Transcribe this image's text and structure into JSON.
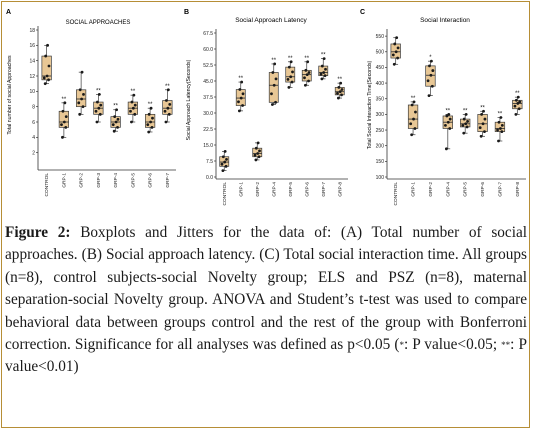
{
  "chart_data": [
    {
      "type": "boxplot",
      "panel_letter": "A",
      "title": "SOCIAL APPROACHES",
      "ylabel": "Total number of social Approaches",
      "ylim": [
        0,
        18
      ],
      "yticks": [
        2,
        4,
        6,
        8,
        10,
        12,
        14,
        16,
        18
      ],
      "categories": [
        "CONTROL",
        "GRP-1",
        "GRP-2",
        "GRP-3",
        "GRP-4",
        "GRP-5",
        "GRP-6",
        "GRP-7"
      ],
      "boxes": [
        {
          "min": 11,
          "q1": 11.5,
          "median": 12,
          "q3": 14.6,
          "max": 16,
          "sig": ""
        },
        {
          "min": 4,
          "q1": 5.3,
          "median": 6,
          "q3": 7.4,
          "max": 8.5,
          "sig": "**"
        },
        {
          "min": 7,
          "q1": 8,
          "median": 9,
          "q3": 10.2,
          "max": 12.5,
          "sig": ""
        },
        {
          "min": 6,
          "q1": 7,
          "median": 7.8,
          "q3": 8.6,
          "max": 9.6,
          "sig": "**"
        },
        {
          "min": 4.8,
          "q1": 5.3,
          "median": 6,
          "q3": 6.7,
          "max": 7.6,
          "sig": "**"
        },
        {
          "min": 6,
          "q1": 7,
          "median": 7.8,
          "q3": 8.6,
          "max": 9.5,
          "sig": "**"
        },
        {
          "min": 4.7,
          "q1": 5.3,
          "median": 6,
          "q3": 7,
          "max": 7.8,
          "sig": "**"
        },
        {
          "min": 6,
          "q1": 7,
          "median": 7.8,
          "q3": 8.8,
          "max": 10.2,
          "sig": "**"
        }
      ]
    },
    {
      "type": "boxplot",
      "panel_letter": "B",
      "title": "Social Approach Latency",
      "ylabel": "Social Approach Latency(Seconds)",
      "ylim": [
        0,
        67.5
      ],
      "yticks": [
        "0.0",
        "7.5",
        "15.0",
        "22.5",
        "30.0",
        "37.5",
        "45.0",
        "52.5",
        "60.0",
        "67.5"
      ],
      "categories": [
        "CONTROL",
        "GRP-1",
        "GRP-2",
        "GRP-4",
        "GRP-5",
        "GRP-6",
        "GRP-7",
        "GRP-8"
      ],
      "boxes": [
        {
          "min": 3,
          "q1": 5,
          "median": 7,
          "q3": 9.5,
          "max": 12,
          "sig": ""
        },
        {
          "min": 31,
          "q1": 33.5,
          "median": 37,
          "q3": 41,
          "max": 44.5,
          "sig": "**"
        },
        {
          "min": 8,
          "q1": 9.5,
          "median": 11,
          "q3": 13.5,
          "max": 16,
          "sig": ""
        },
        {
          "min": 34,
          "q1": 35,
          "median": 43,
          "q3": 49,
          "max": 53,
          "sig": "**"
        },
        {
          "min": 42,
          "q1": 44.5,
          "median": 47,
          "q3": 51.5,
          "max": 54,
          "sig": "**"
        },
        {
          "min": 43,
          "q1": 45,
          "median": 48,
          "q3": 50,
          "max": 54,
          "sig": "**"
        },
        {
          "min": 46,
          "q1": 47.5,
          "median": 49,
          "q3": 52,
          "max": 55.5,
          "sig": "**"
        },
        {
          "min": 37,
          "q1": 38.5,
          "median": 40,
          "q3": 42,
          "max": 44,
          "sig": "**"
        }
      ]
    },
    {
      "type": "boxplot",
      "panel_letter": "C",
      "title": "Social Interaction",
      "ylabel": "Total Social Interaction Time(Seconds)",
      "ylim": [
        100,
        560
      ],
      "yticks": [
        100,
        150,
        200,
        250,
        300,
        350,
        400,
        450,
        500,
        550
      ],
      "categories": [
        "CONTROL",
        "GRP-1",
        "GRP-2",
        "GRP-4",
        "GRP-5",
        "GRP-6",
        "GRP-7",
        "GRP-8"
      ],
      "boxes": [
        {
          "min": 460,
          "q1": 480,
          "median": 500,
          "q3": 525,
          "max": 545,
          "sig": ""
        },
        {
          "min": 235,
          "q1": 255,
          "median": 285,
          "q3": 330,
          "max": 340,
          "sig": "**"
        },
        {
          "min": 360,
          "q1": 390,
          "median": 425,
          "q3": 455,
          "max": 470,
          "sig": "*"
        },
        {
          "min": 190,
          "q1": 255,
          "median": 275,
          "q3": 295,
          "max": 300,
          "sig": "**"
        },
        {
          "min": 240,
          "q1": 260,
          "median": 270,
          "q3": 285,
          "max": 300,
          "sig": "**"
        },
        {
          "min": 230,
          "q1": 245,
          "median": 270,
          "q3": 300,
          "max": 310,
          "sig": "**"
        },
        {
          "min": 215,
          "q1": 245,
          "median": 255,
          "q3": 275,
          "max": 290,
          "sig": "**"
        },
        {
          "min": 300,
          "q1": 318,
          "median": 335,
          "q3": 345,
          "max": 355,
          "sig": "**"
        }
      ]
    }
  ],
  "caption": {
    "label": "Figure 2:",
    "text_1": " Boxplots and Jitters for the data of: (A) Total number of social approaches. (B) Social approach latency. (C) Total social interaction time. All groups (n=8), control subjects-social Novelty group; ELS and PSZ (n=8), maternal separation-social Novelty group. ANOVA and Student’s t-test was used to compare behavioral data between groups control and the rest of the group with Bonferroni correction. Significance for all analyses was defined as p<0.05 (",
    "sup_1": "*",
    "text_2": ": P value<0.05; ",
    "sup_2": "**",
    "text_3": ": P value<0.01)"
  },
  "colors": {
    "box_fill": "#e8c795",
    "box_stroke": "#3a3a3a",
    "point": "#1a1a1a",
    "frame": "#b68e36"
  }
}
